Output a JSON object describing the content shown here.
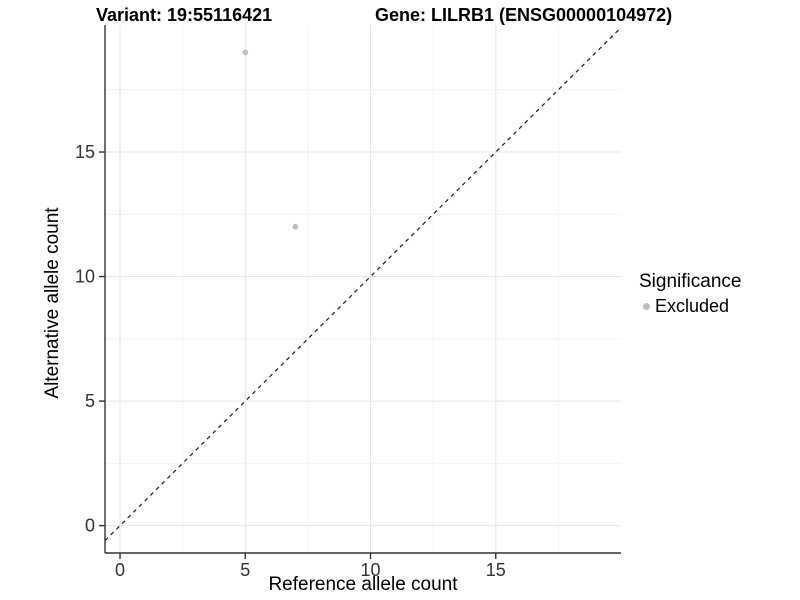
{
  "titles": {
    "variant": "Variant: 19:55116421",
    "gene": "Gene: LILRB1 (ENSG00000104972)"
  },
  "legend": {
    "title": "Significance",
    "items": [
      {
        "label": "Excluded",
        "color": "#bdbdbd"
      }
    ]
  },
  "colors": {
    "background": "#ffffff",
    "axis_line": "#333333",
    "tick_label": "#333333",
    "grid_major": "#e5e5e5",
    "grid_minor": "#f2f2f2",
    "point": "#bdbdbd",
    "identity_line": "#1a1a1a"
  },
  "chart_data": {
    "type": "scatter",
    "title": "Variant: 19:55116421   Gene: LILRB1 (ENSG00000104972)",
    "xlabel": "Reference allele count",
    "ylabel": "Alternative allele count",
    "xlim": [
      -0.6,
      20.0
    ],
    "ylim": [
      -1.1,
      20.1
    ],
    "x_ticks": [
      0,
      5,
      10,
      15
    ],
    "y_ticks": [
      0,
      5,
      10,
      15
    ],
    "x_minor_ticks": [
      2.5,
      7.5,
      12.5,
      17.5
    ],
    "y_minor_ticks": [
      2.5,
      7.5,
      12.5,
      17.5
    ],
    "grid": true,
    "legend_position": "right",
    "series": [
      {
        "name": "Excluded",
        "color": "#bdbdbd",
        "points": [
          {
            "x": 5,
            "y": 19
          },
          {
            "x": 7,
            "y": 12
          }
        ]
      }
    ],
    "identity_line": {
      "slope": 1,
      "intercept": 0,
      "style": "dashed"
    }
  }
}
